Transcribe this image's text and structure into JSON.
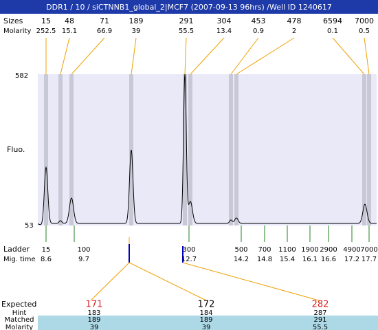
{
  "title": "DDR1 / 10 / siCTNNB1_global_2|MCF7 (2007-09-13 96hrs) /Well ID 1240617",
  "peaks": {
    "sizes_label": "Sizes",
    "molarity_label": "Molarity",
    "sizes": [
      15,
      48,
      71,
      189,
      291,
      304,
      453,
      478,
      6594,
      7000
    ],
    "molarity": [
      252.5,
      15.1,
      66.9,
      39,
      55.5,
      13.4,
      0.9,
      2,
      0.1,
      0.5
    ]
  },
  "axis": {
    "label": "Fluo.",
    "max": 582,
    "min": 53
  },
  "ladder": {
    "label": "Ladder",
    "mig_label": "Mig. time",
    "sizes": [
      15,
      100,
      300,
      500,
      700,
      1100,
      1900,
      2900,
      4900,
      7000
    ],
    "mig_times": [
      8.6,
      9.7,
      12.7,
      14.2,
      14.8,
      15.4,
      16.1,
      16.6,
      17.2,
      17.7
    ]
  },
  "expected": {
    "expected_label": "Expected",
    "hint_label": "Hint",
    "matched_label": "Matched",
    "molarity_label": "Molarity",
    "rows": [
      {
        "expected": 171,
        "color": "#e02020",
        "hint": 183,
        "matched": 189,
        "molarity": 39
      },
      {
        "expected": 172,
        "color": "#000000",
        "hint": 184,
        "matched": 189,
        "molarity": 39
      },
      {
        "expected": 282,
        "color": "#e02020",
        "hint": 287,
        "matched": 291,
        "molarity": 55.5
      }
    ]
  }
}
